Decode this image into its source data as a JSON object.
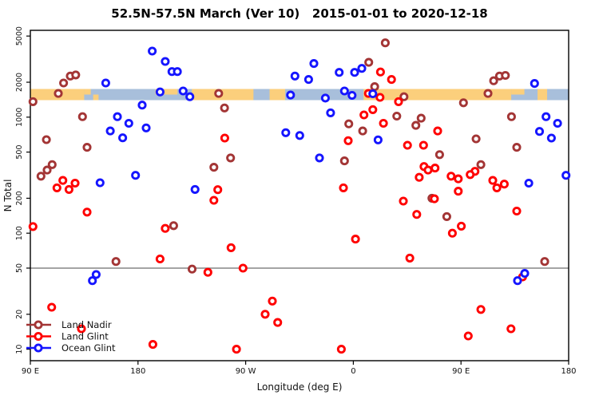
{
  "title": "52.5N-57.5N March (Ver 10)   2015-01-01 to 2020-12-18",
  "chart_data": {
    "type": "scatter",
    "title": "52.5N-57.5N March (Ver 10)   2015-01-01 to 2020-12-18",
    "xlabel": "Longitude (deg E)",
    "ylabel": "N Total",
    "x_axis": {
      "range_deg": [
        90,
        540
      ],
      "ticks": [
        {
          "deg": 90,
          "label": "90 E"
        },
        {
          "deg": 180,
          "label": "180"
        },
        {
          "deg": 270,
          "label": "90 W"
        },
        {
          "deg": 360,
          "label": "0"
        },
        {
          "deg": 450,
          "label": "90 E"
        },
        {
          "deg": 540,
          "label": "180"
        }
      ]
    },
    "y_axis": {
      "scale": "log",
      "range": [
        10,
        5000
      ],
      "ticks": [
        {
          "value": 5000,
          "label": "5000"
        },
        {
          "value": 2000,
          "label": "2000"
        },
        {
          "value": 1000,
          "label": "1000"
        },
        {
          "value": 500,
          "label": "500"
        },
        {
          "value": 200,
          "label": "200"
        },
        {
          "value": 100,
          "label": "100"
        },
        {
          "value": 50,
          "label": "50"
        },
        {
          "value": 20,
          "label": "20"
        },
        {
          "value": 10,
          "label": "10"
        }
      ]
    },
    "reference_line": {
      "value": 50,
      "color": "#858585"
    },
    "map_band": {
      "value_top": 1740,
      "value_bottom": 1390,
      "ocean_color": "#A8BFDB",
      "land_color": "#FBCF7C",
      "land_segments": [
        {
          "from": 90,
          "to": 135,
          "part": "full"
        },
        {
          "from": 135,
          "to": 140.5,
          "part": "top"
        },
        {
          "from": 142.5,
          "to": 147,
          "part": "bottom"
        },
        {
          "from": 194.5,
          "to": 213,
          "part": "top"
        },
        {
          "from": 225,
          "to": 276.5,
          "part": "full"
        },
        {
          "from": 290,
          "to": 303,
          "part": "full"
        },
        {
          "from": 368.5,
          "to": 492,
          "part": "full"
        },
        {
          "from": 492,
          "to": 503,
          "part": "top"
        },
        {
          "from": 514,
          "to": 522,
          "part": "full"
        }
      ]
    },
    "legend": {
      "items": [
        {
          "label": "Land Nadir",
          "series": "Land Nadir"
        },
        {
          "label": "Land Glint",
          "series": "Land Glint"
        },
        {
          "label": "Ocean Glint",
          "series": "Ocean Glint"
        }
      ]
    },
    "series": [
      {
        "name": "Land Nadir",
        "color": "#A33535",
        "points": [
          [
            117.8,
            1970
          ],
          [
            123.4,
            2260
          ],
          [
            127.9,
            2310
          ],
          [
            113.4,
            1600
          ],
          [
            92.2,
            1360
          ],
          [
            133.6,
            1010
          ],
          [
            103.4,
            640
          ],
          [
            137.4,
            550
          ],
          [
            108.2,
            390
          ],
          [
            104,
            350
          ],
          [
            98.9,
            310
          ],
          [
            247.4,
            1600
          ],
          [
            252.3,
            1200
          ],
          [
            257.4,
            445
          ],
          [
            243.4,
            370
          ],
          [
            386.7,
            4370
          ],
          [
            372.9,
            2970
          ],
          [
            377.8,
            1830
          ],
          [
            402.3,
            1500
          ],
          [
            396.3,
            1020
          ],
          [
            416.7,
            980
          ],
          [
            356.2,
            875
          ],
          [
            412.3,
            850
          ],
          [
            367.8,
            760
          ],
          [
            352.6,
            420
          ],
          [
            425.7,
            200
          ],
          [
            477.3,
            2060
          ],
          [
            482.2,
            2260
          ],
          [
            487.1,
            2290
          ],
          [
            472.6,
            1600
          ],
          [
            452.1,
            1330
          ],
          [
            492.2,
            1010
          ],
          [
            462.6,
            650
          ],
          [
            496.6,
            550
          ],
          [
            432.1,
            475
          ],
          [
            466.6,
            390
          ],
          [
            161.6,
            57
          ],
          [
            209.8,
            116
          ],
          [
            225.2,
            49
          ],
          [
            438.1,
            139
          ],
          [
            520,
            57
          ]
        ]
      },
      {
        "name": "Land Glint",
        "color": "#FF0000",
        "points": [
          [
            117.2,
            285
          ],
          [
            112.2,
            246
          ],
          [
            122.3,
            238
          ],
          [
            127.4,
            270
          ],
          [
            252.5,
            660
          ],
          [
            246.7,
            237
          ],
          [
            243.4,
            192
          ],
          [
            382.7,
            2450
          ],
          [
            391.9,
            2110
          ],
          [
            372.6,
            1600
          ],
          [
            382.3,
            1480
          ],
          [
            397.8,
            1360
          ],
          [
            376.3,
            1160
          ],
          [
            368.9,
            1045
          ],
          [
            385.2,
            885
          ],
          [
            355.7,
            627
          ],
          [
            405.3,
            573
          ],
          [
            418.7,
            573
          ],
          [
            419.1,
            375
          ],
          [
            422.5,
            350
          ],
          [
            415.1,
            303
          ],
          [
            351.7,
            246
          ],
          [
            401.8,
            189
          ],
          [
            430.5,
            760
          ],
          [
            428.3,
            364
          ],
          [
            461.7,
            341
          ],
          [
            457.7,
            320
          ],
          [
            441.7,
            310
          ],
          [
            447.7,
            294
          ],
          [
            476.6,
            285
          ],
          [
            486.2,
            265
          ],
          [
            480,
            246
          ],
          [
            447.7,
            230
          ],
          [
            427.8,
            198
          ],
          [
            137.4,
            152
          ],
          [
            92.2,
            114
          ],
          [
            202.8,
            110
          ],
          [
            198.4,
            60
          ],
          [
            107.8,
            23
          ],
          [
            132.7,
            15
          ],
          [
            192.4,
            11
          ],
          [
            257.8,
            75
          ],
          [
            238.4,
            46
          ],
          [
            267.8,
            50
          ],
          [
            292.3,
            26
          ],
          [
            286.3,
            20
          ],
          [
            296.8,
            17
          ],
          [
            262.3,
            10
          ],
          [
            413,
            145
          ],
          [
            361.8,
            89
          ],
          [
            407.2,
            61
          ],
          [
            350,
            10
          ],
          [
            450.3,
            115
          ],
          [
            442.8,
            100
          ],
          [
            496.6,
            155
          ],
          [
            501.5,
            42
          ],
          [
            466.6,
            22
          ],
          [
            456.1,
            13
          ],
          [
            491.8,
            15
          ]
        ]
      },
      {
        "name": "Ocean Glint",
        "color": "#1515FF",
        "points": [
          [
            191.9,
            3710
          ],
          [
            202.8,
            3020
          ],
          [
            153,
            1970
          ],
          [
            198.4,
            1650
          ],
          [
            183.5,
            1270
          ],
          [
            162.8,
            1010
          ],
          [
            172.3,
            885
          ],
          [
            156.8,
            760
          ],
          [
            186.8,
            807
          ],
          [
            167.2,
            664
          ],
          [
            148.3,
            272
          ],
          [
            177.9,
            315
          ],
          [
            208.4,
            2470
          ],
          [
            212.9,
            2470
          ],
          [
            311.2,
            2260
          ],
          [
            217.7,
            1680
          ],
          [
            223.3,
            1500
          ],
          [
            307.5,
            1550
          ],
          [
            303.5,
            734
          ],
          [
            315.2,
            695
          ],
          [
            227.7,
            238
          ],
          [
            327,
            2900
          ],
          [
            367.1,
            2630
          ],
          [
            348.2,
            2430
          ],
          [
            361.1,
            2430
          ],
          [
            322.6,
            2110
          ],
          [
            352.6,
            1680
          ],
          [
            358.9,
            1540
          ],
          [
            336.6,
            1460
          ],
          [
            376.3,
            1590
          ],
          [
            341,
            1090
          ],
          [
            380.7,
            637
          ],
          [
            331.7,
            445
          ],
          [
            511.5,
            1950
          ],
          [
            521.1,
            1010
          ],
          [
            530.7,
            885
          ],
          [
            515.6,
            753
          ],
          [
            525.6,
            660
          ],
          [
            506.7,
            270
          ],
          [
            537.8,
            315
          ],
          [
            145,
            44
          ],
          [
            141.9,
            39
          ],
          [
            503.3,
            45
          ],
          [
            497.3,
            39
          ]
        ]
      }
    ]
  }
}
